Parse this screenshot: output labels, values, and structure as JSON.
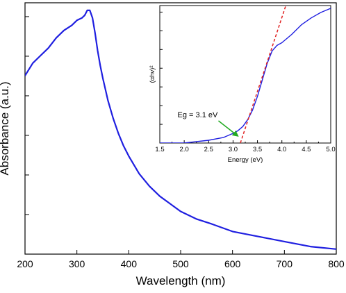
{
  "chart_data": [
    {
      "type": "line",
      "xlabel": "Wavelength (nm)",
      "ylabel": "Absorbance (a.u.)",
      "xlim": [
        200,
        800
      ],
      "ylim": [
        0,
        1
      ],
      "x_ticks": [
        200,
        300,
        400,
        500,
        600,
        700,
        800
      ],
      "y_tick_labels_shown": false,
      "series": [
        {
          "color": "#1f1fe0",
          "x": [
            200,
            215,
            230,
            245,
            260,
            275,
            290,
            300,
            310,
            315,
            320,
            325,
            330,
            335,
            340,
            345,
            350,
            360,
            370,
            380,
            390,
            400,
            420,
            440,
            460,
            480,
            500,
            530,
            560,
            600,
            650,
            700,
            750,
            800
          ],
          "y": [
            0.71,
            0.76,
            0.79,
            0.82,
            0.86,
            0.89,
            0.91,
            0.93,
            0.94,
            0.95,
            0.97,
            0.97,
            0.94,
            0.88,
            0.81,
            0.75,
            0.7,
            0.61,
            0.54,
            0.48,
            0.43,
            0.39,
            0.32,
            0.27,
            0.23,
            0.2,
            0.17,
            0.14,
            0.12,
            0.09,
            0.07,
            0.05,
            0.03,
            0.02
          ]
        }
      ]
    },
    {
      "type": "line",
      "xlabel": "Energy (eV)",
      "ylabel": "(αhν)²",
      "xlim": [
        1.5,
        5.0
      ],
      "ylim": [
        0,
        1
      ],
      "x_ticks": [
        1.5,
        2.0,
        2.5,
        3.0,
        3.5,
        4.0,
        4.5,
        5.0
      ],
      "x_tick_labels": [
        "1.5",
        "2.0",
        "2.5",
        "3.0",
        "3.5",
        "4.0",
        "4.5",
        "5.0"
      ],
      "y_tick_labels_shown": false,
      "series": [
        {
          "color": "#1f1fe0",
          "x": [
            1.5,
            2.0,
            2.5,
            2.8,
            3.0,
            3.1,
            3.2,
            3.3,
            3.4,
            3.5,
            3.6,
            3.7,
            3.8,
            3.9,
            4.0,
            4.2,
            4.4,
            4.6,
            4.8,
            5.0
          ],
          "y": [
            0.0,
            0.0,
            0.02,
            0.04,
            0.07,
            0.09,
            0.12,
            0.17,
            0.24,
            0.34,
            0.46,
            0.58,
            0.67,
            0.71,
            0.73,
            0.79,
            0.86,
            0.91,
            0.95,
            0.98
          ]
        },
        {
          "color": "#e02020",
          "style": "dashed",
          "x": [
            3.15,
            4.1
          ],
          "y": [
            0.0,
            1.02
          ]
        }
      ],
      "annotations": [
        {
          "text": "Eg = 3.1 eV",
          "arrow_color": "#22aa22",
          "arrow_to": [
            3.1,
            0.0
          ]
        }
      ]
    }
  ]
}
